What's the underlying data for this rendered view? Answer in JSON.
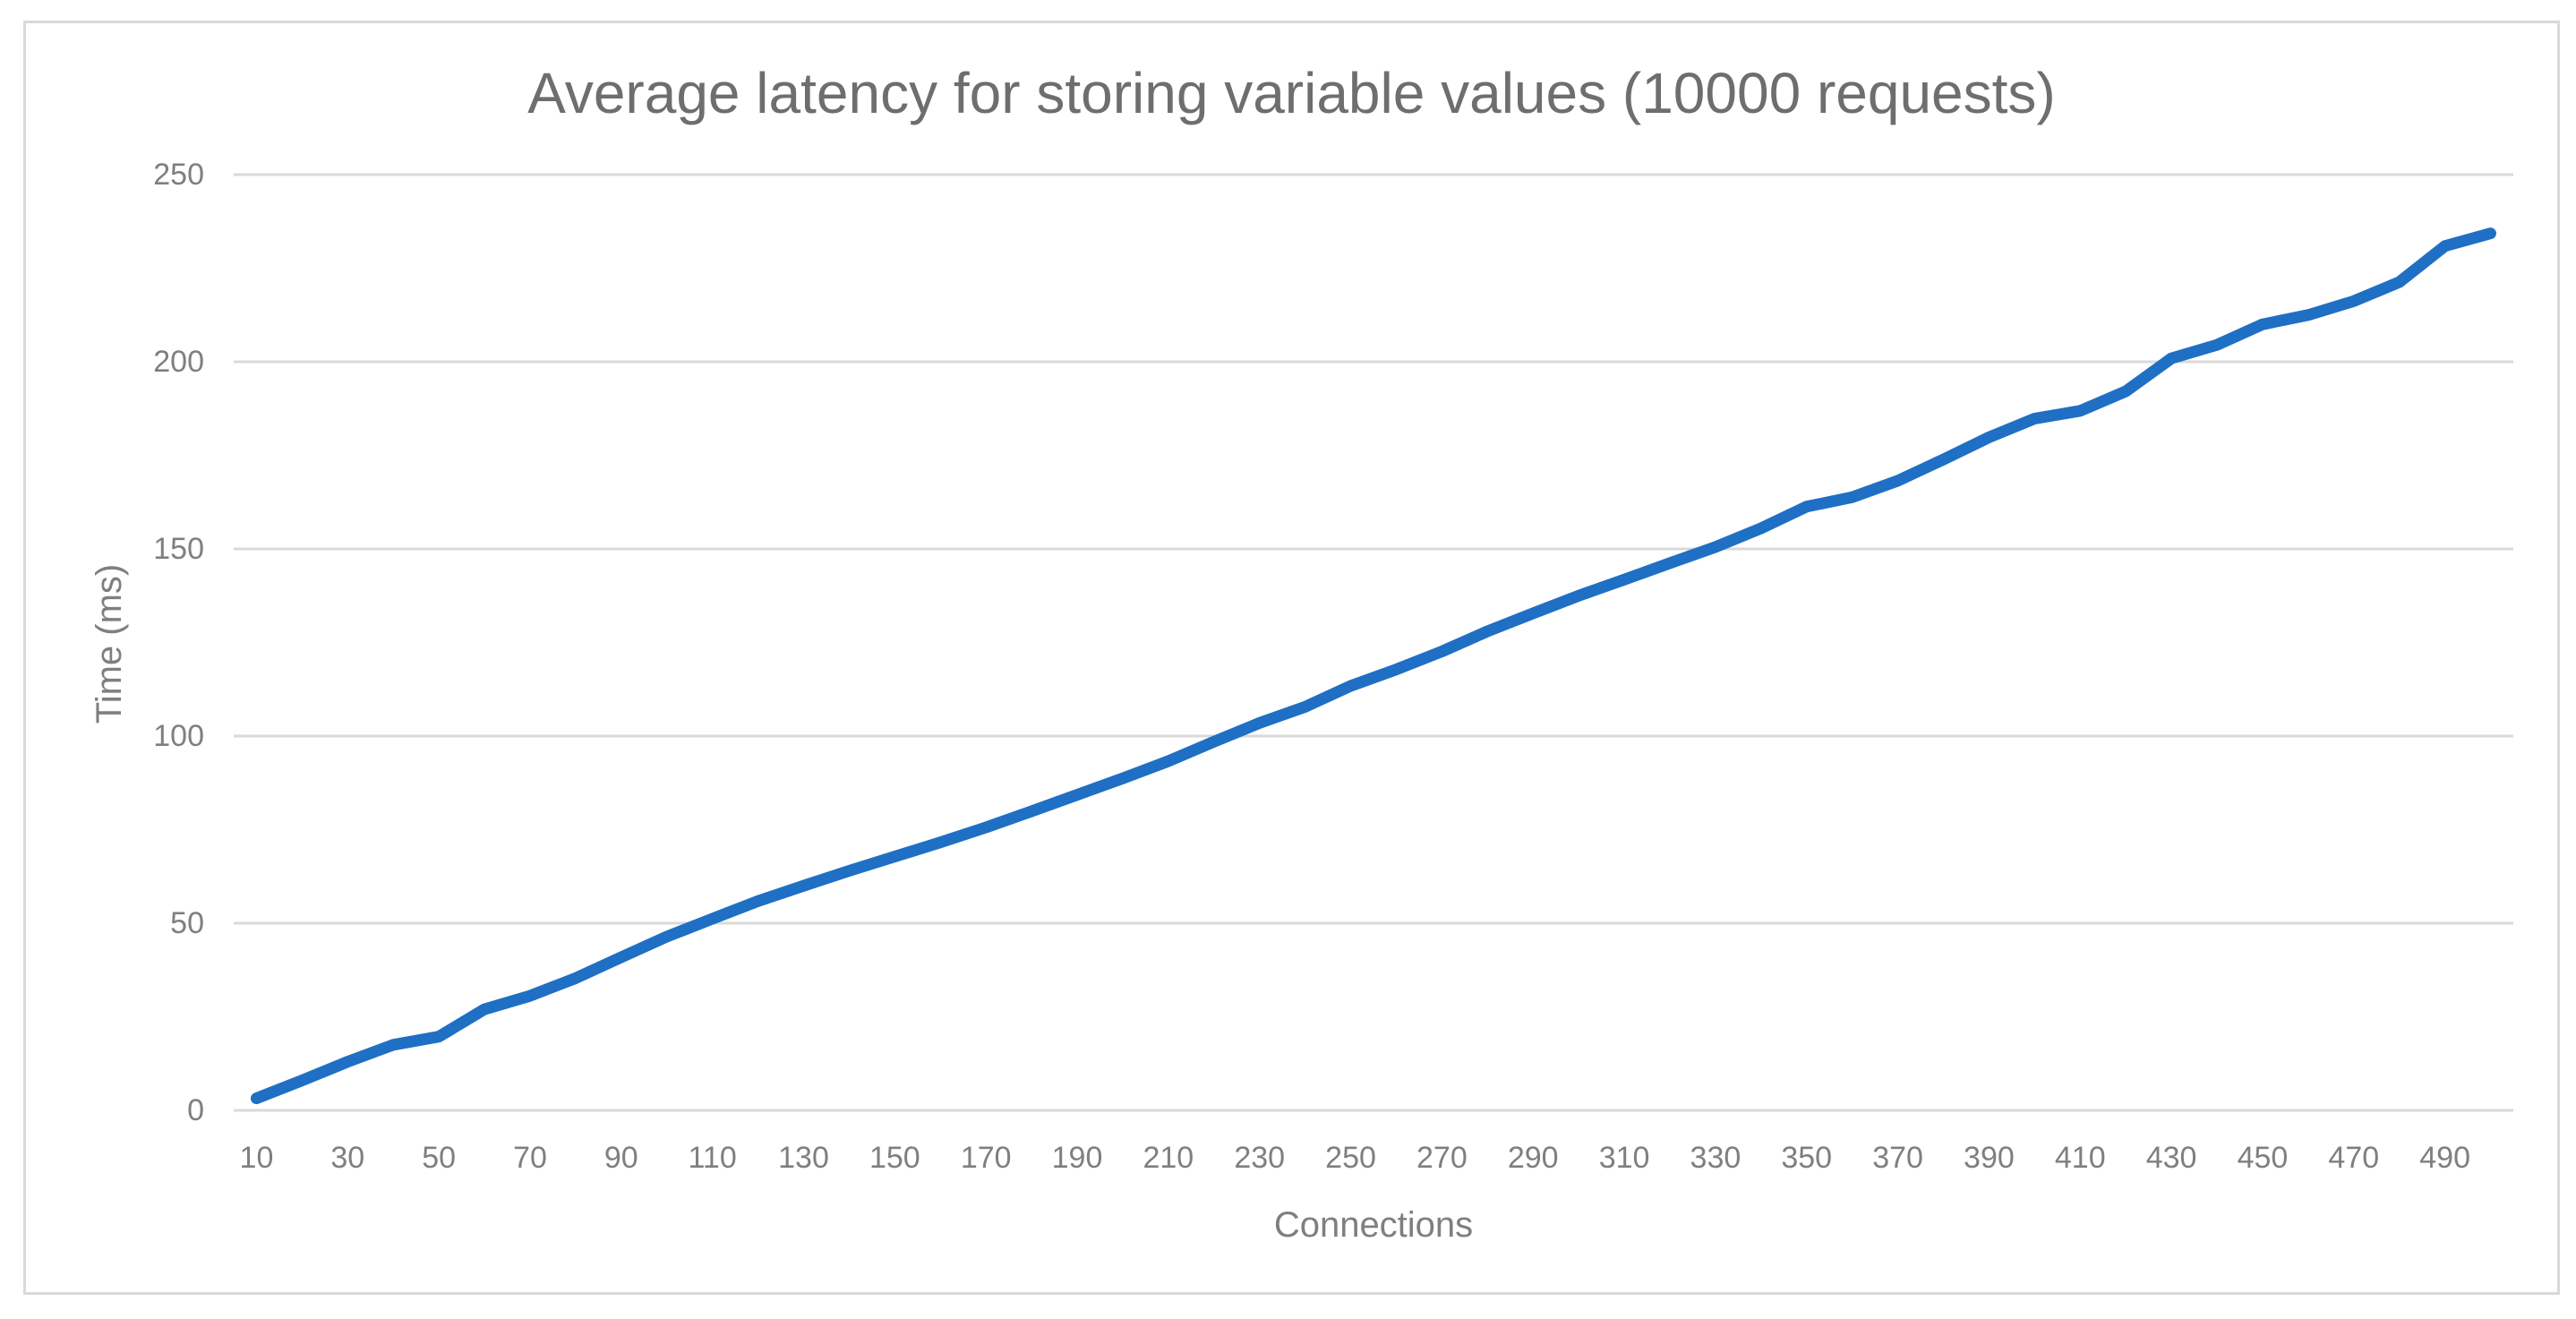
{
  "chart_data": {
    "type": "line",
    "title": "Average latency for storing variable values (10000 requests)",
    "xlabel": "Connections",
    "ylabel": "Time (ms)",
    "categories": [
      10,
      20,
      30,
      40,
      50,
      60,
      70,
      80,
      90,
      100,
      110,
      120,
      130,
      140,
      150,
      160,
      170,
      180,
      190,
      200,
      210,
      220,
      230,
      240,
      250,
      260,
      270,
      280,
      290,
      300,
      310,
      320,
      330,
      340,
      350,
      360,
      370,
      380,
      390,
      400,
      410,
      420,
      430,
      440,
      450,
      460,
      470,
      480,
      490,
      500
    ],
    "values": [
      3.2,
      8,
      13,
      17.5,
      19.7,
      27,
      30.6,
      35.3,
      40.9,
      46.4,
      51.2,
      55.9,
      60,
      64,
      67.8,
      71.6,
      75.6,
      79.9,
      84.3,
      88.7,
      93.3,
      98.5,
      103.5,
      107.8,
      113.4,
      117.8,
      122.6,
      128,
      132.8,
      137.5,
      141.8,
      146.2,
      150.5,
      155.5,
      161.3,
      163.8,
      168.2,
      173.9,
      179.8,
      184.8,
      186.9,
      192.1,
      200.9,
      204.5,
      210,
      212.5,
      216.2,
      221.3,
      230.9,
      234.3
    ],
    "x_tick_labels": [
      "10",
      "30",
      "50",
      "70",
      "90",
      "110",
      "130",
      "150",
      "170",
      "190",
      "210",
      "230",
      "250",
      "270",
      "290",
      "310",
      "330",
      "350",
      "370",
      "390",
      "410",
      "430",
      "450",
      "470",
      "490"
    ],
    "y_ticks": [
      0,
      50,
      100,
      150,
      200,
      250
    ],
    "ylim": [
      0,
      250
    ],
    "grid": true,
    "legend": false,
    "colors": {
      "line": "#1F6FC4",
      "gridline": "#D9D9D9",
      "tick_labels": "#7F7F7F",
      "axis_titles": "#7F7F7F",
      "title": "#6E6E6E",
      "frame_border": "#D9D9D9",
      "background": "#FFFFFF"
    }
  }
}
